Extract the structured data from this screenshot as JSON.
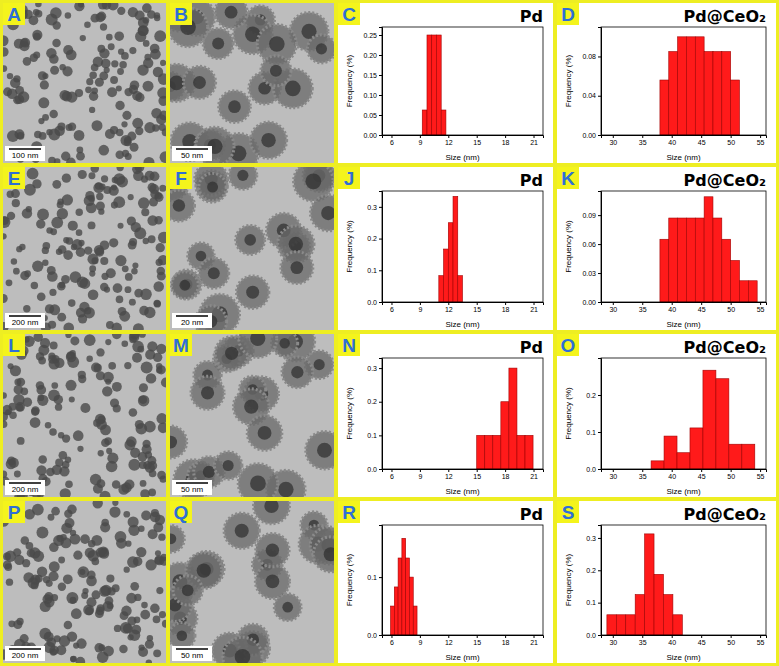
{
  "chart_data": [
    {
      "type": "histogram",
      "panel": "C",
      "title": "Pd",
      "x_label": "Size (nm)",
      "y_label": "Frequency (%)",
      "bins": [
        9.25,
        9.75,
        10.25,
        10.75,
        11.25,
        11.75
      ],
      "values": [
        0.0625,
        0.25,
        0.25,
        0.25,
        0.0625
      ],
      "color": "#ff1a1a",
      "xlim": [
        5,
        22
      ],
      "xticks": [
        6,
        9,
        12,
        15,
        18,
        21
      ],
      "ylim": [
        0,
        0.27
      ],
      "yticks": [
        {
          "value": 0,
          "label": "0.00"
        },
        0.05,
        {
          "value": 0.1,
          "label": "0.10"
        },
        0.15,
        {
          "value": 0.2,
          "label": "0.20"
        },
        0.25
      ]
    },
    {
      "type": "histogram",
      "panel": "D",
      "title": "Pd@CeO₂",
      "x_label": "Size (nm)",
      "y_label": "Frequency (%)",
      "bins": [
        38,
        39.5,
        41,
        42.5,
        44,
        45.5,
        47,
        48.5,
        50,
        51.5
      ],
      "values": [
        0.056,
        0.085,
        0.1,
        0.1,
        0.1,
        0.085,
        0.085,
        0.085,
        0.056
      ],
      "color": "#ff1a1a",
      "xlim": [
        28,
        56
      ],
      "xticks": [
        30,
        35,
        40,
        45,
        50,
        55
      ],
      "ylim": [
        0,
        0.11
      ],
      "yticks": [
        {
          "value": 0,
          "label": "0.00"
        },
        0.04,
        0.08
      ]
    },
    {
      "type": "histogram",
      "panel": "J",
      "title": "Pd",
      "x_label": "Size (nm)",
      "y_label": "Frequency (%)",
      "bins": [
        11,
        11.5,
        12,
        12.5,
        13,
        13.5
      ],
      "values": [
        0.083,
        0.167,
        0.25,
        0.333,
        0.083
      ],
      "color": "#ff1a1a",
      "xlim": [
        5,
        22
      ],
      "xticks": [
        6,
        9,
        12,
        15,
        18,
        21
      ],
      "ylim": [
        0,
        0.35
      ],
      "yticks": [
        {
          "value": 0,
          "label": "0.0"
        },
        0.1,
        0.2,
        0.3
      ]
    },
    {
      "type": "histogram",
      "panel": "K",
      "title": "Pd@CeO₂",
      "x_label": "Size (nm)",
      "y_label": "Frequency (%)",
      "bins": [
        38,
        39.5,
        41,
        42.5,
        44,
        45.5,
        47,
        48.5,
        50,
        51.5,
        53,
        54.5
      ],
      "values": [
        0.065,
        0.087,
        0.087,
        0.087,
        0.087,
        0.109,
        0.087,
        0.065,
        0.043,
        0.022,
        0.022
      ],
      "color": "#ff1a1a",
      "xlim": [
        28,
        56
      ],
      "xticks": [
        30,
        35,
        40,
        45,
        50,
        55
      ],
      "ylim": [
        0,
        0.115
      ],
      "yticks": [
        {
          "value": 0,
          "label": "0.00"
        },
        0.03,
        0.06,
        0.09
      ]
    },
    {
      "type": "histogram",
      "panel": "N",
      "title": "Pd",
      "x_label": "Size (nm)",
      "y_label": "Frequency (%)",
      "bins": [
        15,
        15.85,
        16.7,
        17.55,
        18.4,
        19.25,
        20.1,
        20.95
      ],
      "values": [
        0.1,
        0.1,
        0.1,
        0.2,
        0.3,
        0.1,
        0.1
      ],
      "color": "#ff1a1a",
      "xlim": [
        5,
        22
      ],
      "xticks": [
        6,
        9,
        12,
        15,
        18,
        21
      ],
      "ylim": [
        0,
        0.33
      ],
      "yticks": [
        {
          "value": 0,
          "label": "0.0"
        },
        0.1,
        0.2,
        0.3
      ]
    },
    {
      "type": "histogram",
      "panel": "O",
      "title": "Pd@CeO₂",
      "x_label": "Size (nm)",
      "y_label": "Frequency (%)",
      "bins": [
        36.5,
        38.7,
        40.9,
        43.1,
        45.3,
        47.5,
        49.7,
        51.9,
        54.1
      ],
      "values": [
        0.022,
        0.089,
        0.044,
        0.111,
        0.267,
        0.244,
        0.067,
        0.067
      ],
      "color": "#ff1a1a",
      "xlim": [
        28,
        56
      ],
      "xticks": [
        30,
        35,
        40,
        45,
        50,
        55
      ],
      "ylim": [
        0,
        0.3
      ],
      "yticks": [
        {
          "value": 0,
          "label": "0.0"
        },
        0.1,
        0.2
      ]
    },
    {
      "type": "histogram",
      "panel": "R",
      "title": "Pd",
      "x_label": "Size (nm)",
      "y_label": "Frequency (%)",
      "bins": [
        5.9,
        6.3,
        6.7,
        7.1,
        7.5,
        7.9,
        8.3,
        8.7
      ],
      "values": [
        0.05,
        0.083,
        0.133,
        0.167,
        0.133,
        0.1,
        0.05
      ],
      "color": "#ff1a1a",
      "xlim": [
        5,
        22
      ],
      "xticks": [
        6,
        9,
        12,
        15,
        18,
        21
      ],
      "ylim": [
        0,
        0.19
      ],
      "yticks": [
        {
          "value": 0,
          "label": "0.0"
        },
        0.1
      ]
    },
    {
      "type": "histogram",
      "panel": "S",
      "title": "Pd@CeO₂",
      "x_label": "Size (nm)",
      "y_label": "Frequency (%)",
      "bins": [
        29,
        30.6,
        32.2,
        33.8,
        35.4,
        37,
        38.6,
        40.2,
        41.8
      ],
      "values": [
        0.0625,
        0.0625,
        0.0625,
        0.125,
        0.3125,
        0.1875,
        0.125,
        0.0625
      ],
      "color": "#ff1a1a",
      "xlim": [
        28,
        56
      ],
      "xticks": [
        30,
        35,
        40,
        45,
        50,
        55
      ],
      "ylim": [
        0,
        0.34
      ],
      "yticks": [
        {
          "value": 0,
          "label": "0.0"
        },
        0.1,
        0.2,
        0.3
      ]
    }
  ],
  "images": [
    {
      "panel": "A",
      "scale_bar": "100 nm"
    },
    {
      "panel": "B",
      "scale_bar": "50 nm"
    },
    {
      "panel": "E",
      "scale_bar": "200 nm"
    },
    {
      "panel": "F",
      "scale_bar": "20 nm"
    },
    {
      "panel": "L",
      "scale_bar": "200 nm"
    },
    {
      "panel": "M",
      "scale_bar": "50 nm"
    },
    {
      "panel": "P",
      "scale_bar": "200 nm"
    },
    {
      "panel": "Q",
      "scale_bar": "50 nm"
    }
  ]
}
